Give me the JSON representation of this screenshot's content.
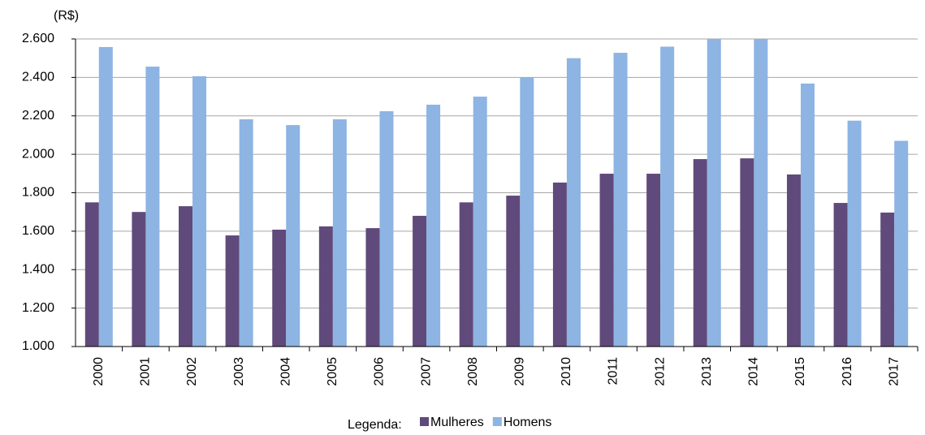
{
  "chart_data": {
    "type": "bar",
    "y_label": "(R$)",
    "legend_title": "Legenda:",
    "categories": [
      "2000",
      "2001",
      "2002",
      "2003",
      "2004",
      "2005",
      "2006",
      "2007",
      "2008",
      "2009",
      "2010",
      "2011",
      "2012",
      "2013",
      "2014",
      "2015",
      "2016",
      "2017"
    ],
    "series": [
      {
        "name": "Mulheres",
        "color": "#604a7b",
        "values": [
          1750,
          1700,
          1730,
          1578,
          1608,
          1625,
          1616,
          1680,
          1750,
          1785,
          1853,
          1899,
          1899,
          1975,
          1979,
          1895,
          1747,
          1697
        ]
      },
      {
        "name": "Homens",
        "color": "#8db4e2",
        "values": [
          2558,
          2456,
          2406,
          2182,
          2152,
          2182,
          2224,
          2258,
          2300,
          2401,
          2500,
          2528,
          2560,
          2600,
          2600,
          2368,
          2175,
          2070
        ]
      }
    ],
    "ylim": [
      1000,
      2600
    ],
    "yticks": [
      {
        "value": 1000,
        "label": "1.000"
      },
      {
        "value": 1200,
        "label": "1.200"
      },
      {
        "value": 1400,
        "label": "1.400"
      },
      {
        "value": 1600,
        "label": "1.600"
      },
      {
        "value": 1800,
        "label": "1.800"
      },
      {
        "value": 2000,
        "label": "2.000"
      },
      {
        "value": 2200,
        "label": "2.200"
      },
      {
        "value": 2400,
        "label": "2.400"
      },
      {
        "value": 2600,
        "label": "2.600"
      }
    ],
    "grid": true
  }
}
